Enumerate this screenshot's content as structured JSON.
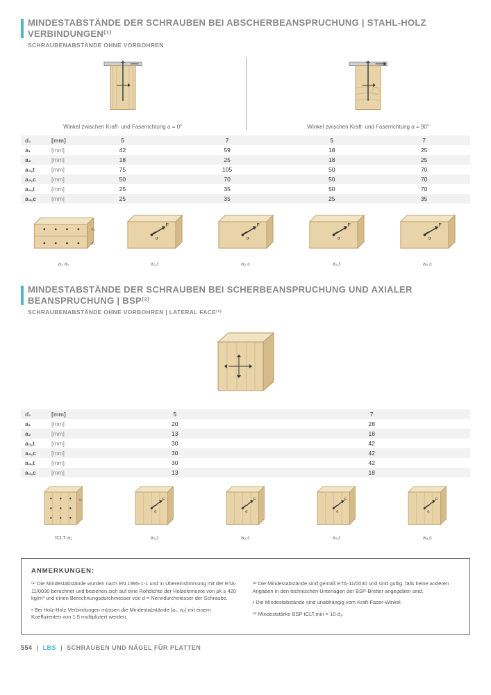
{
  "section1": {
    "title": "MINDESTABSTÄNDE DER SCHRAUBEN BEI ABSCHERBEANSPRUCHUNG | STAHL-HOLZ VERBINDUNGEN⁽¹⁾",
    "subtitle": "SCHRAUBENABSTÄNDE OHNE VORBOHREN",
    "caption_left": "Winkel zwischen Kraft- und Faserrichtung α = 0°",
    "caption_right": "Winkel zwischen Kraft- und Faserrichtung α = 90°",
    "table": {
      "d1_label": "d₁",
      "d1_unit": "[mm]",
      "headers": [
        "5",
        "7",
        "5",
        "7"
      ],
      "rows": [
        {
          "label": "a₁",
          "unit": "[mm]",
          "vals": [
            "42",
            "59",
            "18",
            "25"
          ],
          "zebra": false
        },
        {
          "label": "a₂",
          "unit": "[mm]",
          "vals": [
            "18",
            "25",
            "18",
            "25"
          ],
          "zebra": true
        },
        {
          "label": "a₃,t",
          "unit": "[mm]",
          "vals": [
            "75",
            "105",
            "50",
            "70"
          ],
          "zebra": false
        },
        {
          "label": "a₃,c",
          "unit": "[mm]",
          "vals": [
            "50",
            "70",
            "50",
            "70"
          ],
          "zebra": true
        },
        {
          "label": "a₄,t",
          "unit": "[mm]",
          "vals": [
            "25",
            "35",
            "50",
            "70"
          ],
          "zebra": false
        },
        {
          "label": "a₄,c",
          "unit": "[mm]",
          "vals": [
            "25",
            "35",
            "25",
            "35"
          ],
          "zebra": true
        }
      ]
    },
    "wood_labels": [
      "a₁  a₁",
      "a₃,t",
      "a₃,c",
      "a₄,t",
      "a₄,c"
    ]
  },
  "section2": {
    "title": "MINDESTABSTÄNDE DER SCHRAUBEN BEI SCHERBEANSPRUCHUNG UND AXIALER BEANSPRUCHUNG | BSP⁽²⁾",
    "subtitle": "SCHRAUBENABSTÄNDE OHNE VORBOHREN | LATERAL FACE⁽³⁾",
    "table": {
      "d1_label": "d₁",
      "d1_unit": "[mm]",
      "headers": [
        "5",
        "7"
      ],
      "rows": [
        {
          "label": "a₁",
          "unit": "[mm]",
          "vals": [
            "20",
            "28"
          ],
          "zebra": false
        },
        {
          "label": "a₂",
          "unit": "[mm]",
          "vals": [
            "13",
            "18"
          ],
          "zebra": true
        },
        {
          "label": "a₃,t",
          "unit": "[mm]",
          "vals": [
            "30",
            "42"
          ],
          "zebra": false
        },
        {
          "label": "a₃,c",
          "unit": "[mm]",
          "vals": [
            "30",
            "42"
          ],
          "zebra": true
        },
        {
          "label": "a₄,t",
          "unit": "[mm]",
          "vals": [
            "30",
            "42"
          ],
          "zebra": false
        },
        {
          "label": "a₄,c",
          "unit": "[mm]",
          "vals": [
            "13",
            "18"
          ],
          "zebra": true
        }
      ]
    },
    "wood_labels": [
      "tCLT  a₂",
      "a₃,t",
      "a₃,c",
      "a₄,t",
      "a₄,c"
    ]
  },
  "notes": {
    "title": "ANMERKUNGEN:",
    "col1": [
      "⁽¹⁾ Die Mindestabstände wurden nach EN 1995-1-1 und in Übereinstimmung mit der ETA-11/0030 berechnet und beziehen sich auf eine Rohdichte der Holzelemente von ρk ≤ 420 kg/m³ und einen Berechnungsdurchmesser von d = Nenndurchmesser der Schraube.",
      "• Bei Holz-Holz-Verbindungen müssen die Mindestabstände (a₁, a₂) mit einem Koeffizienten von 1,5 multipliziert werden."
    ],
    "col2": [
      "⁽²⁾ Die Mindestabstände sind gemäß ETA-11/0030 und sind gültig, falls keine anderen Angaben in den technischen Unterlagen der BSP-Bretter angegeben sind.",
      "• Die Mindestabstände sind unabhängig vom Kraft-Faser-Winkel.",
      "⁽³⁾ Mindeststärke BSP tCLT,min = 10·d₁."
    ]
  },
  "footer": {
    "page": "554",
    "brand": "LBS",
    "text": "SCHRAUBEN UND NÄGEL FÜR PLATTEN"
  },
  "colors": {
    "accent": "#4db8c4",
    "wood_light": "#e8d4a8",
    "wood_dark": "#d4bc8a",
    "steel": "#d0d0d0",
    "text_gray": "#888888",
    "zebra": "#f2f2f2"
  }
}
